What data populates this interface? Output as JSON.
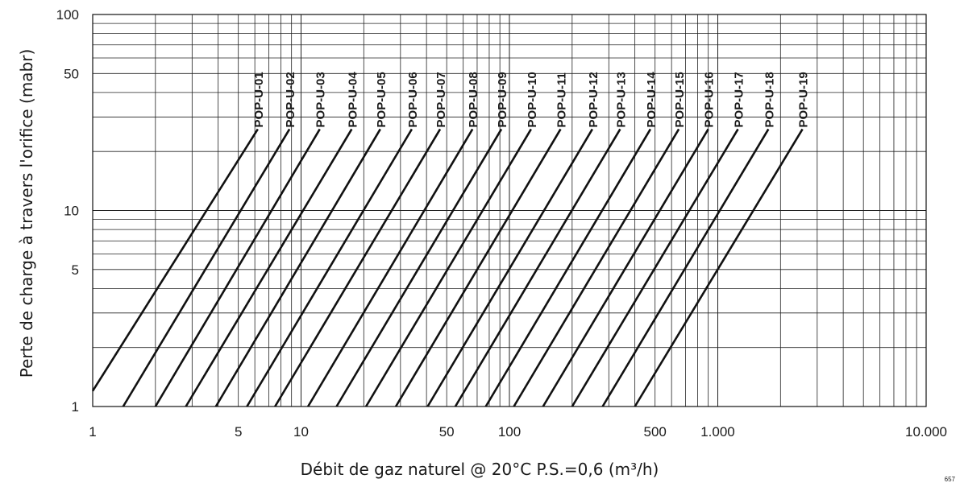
{
  "chart_data": {
    "type": "line",
    "xlabel": "Débit de gaz naturel @ 20°C  P.S.=0,6  (m³/h)",
    "ylabel": "Perte de charge à travers l'orifice (mabr)",
    "x_scale": "log",
    "y_scale": "log",
    "xlim": [
      1,
      10000
    ],
    "ylim": [
      1,
      100
    ],
    "x_ticks": [
      {
        "value": 1,
        "label": "1"
      },
      {
        "value": 5,
        "label": "5"
      },
      {
        "value": 10,
        "label": "10"
      },
      {
        "value": 50,
        "label": "50"
      },
      {
        "value": 100,
        "label": "100"
      },
      {
        "value": 500,
        "label": "500"
      },
      {
        "value": 1000,
        "label": "1.000"
      },
      {
        "value": 10000,
        "label": "10.000"
      }
    ],
    "y_ticks": [
      {
        "value": 1,
        "label": "1"
      },
      {
        "value": 5,
        "label": "5"
      },
      {
        "value": 10,
        "label": "10"
      },
      {
        "value": 50,
        "label": "50"
      },
      {
        "value": 100,
        "label": "100"
      }
    ],
    "grid": true,
    "series": [
      {
        "name": "POP-U-01",
        "points": [
          [
            1.0,
            1.2
          ],
          [
            6.2,
            26
          ]
        ]
      },
      {
        "name": "POP-U-02",
        "points": [
          [
            1.4,
            1.0
          ],
          [
            8.8,
            26
          ]
        ]
      },
      {
        "name": "POP-U-03",
        "points": [
          [
            2.0,
            1.0
          ],
          [
            12.3,
            26
          ]
        ]
      },
      {
        "name": "POP-U-04",
        "points": [
          [
            2.8,
            1.0
          ],
          [
            17.5,
            26
          ]
        ]
      },
      {
        "name": "POP-U-05",
        "points": [
          [
            3.9,
            1.0
          ],
          [
            24.0,
            26
          ]
        ]
      },
      {
        "name": "POP-U-06",
        "points": [
          [
            5.5,
            1.0
          ],
          [
            34.0,
            26
          ]
        ]
      },
      {
        "name": "POP-U-07",
        "points": [
          [
            7.5,
            1.0
          ],
          [
            46.5,
            26
          ]
        ]
      },
      {
        "name": "POP-U-08",
        "points": [
          [
            10.8,
            1.0
          ],
          [
            66.5,
            26
          ]
        ]
      },
      {
        "name": "POP-U-09",
        "points": [
          [
            14.8,
            1.0
          ],
          [
            91.5,
            26
          ]
        ]
      },
      {
        "name": "POP-U-10",
        "points": [
          [
            20.5,
            1.0
          ],
          [
            127,
            26
          ]
        ]
      },
      {
        "name": "POP-U-11",
        "points": [
          [
            28.5,
            1.0
          ],
          [
            176,
            26
          ]
        ]
      },
      {
        "name": "POP-U-12",
        "points": [
          [
            40.5,
            1.0
          ],
          [
            250,
            26
          ]
        ]
      },
      {
        "name": "POP-U-13",
        "points": [
          [
            55.0,
            1.0
          ],
          [
            340,
            26
          ]
        ]
      },
      {
        "name": "POP-U-14",
        "points": [
          [
            77.0,
            1.0
          ],
          [
            475,
            26
          ]
        ]
      },
      {
        "name": "POP-U-15",
        "points": [
          [
            105,
            1.0
          ],
          [
            650,
            26
          ]
        ]
      },
      {
        "name": "POP-U-16",
        "points": [
          [
            145,
            1.0
          ],
          [
            900,
            26
          ]
        ]
      },
      {
        "name": "POP-U-17",
        "points": [
          [
            200,
            1.0
          ],
          [
            1250,
            26
          ]
        ]
      },
      {
        "name": "POP-U-18",
        "points": [
          [
            280,
            1.0
          ],
          [
            1750,
            26
          ]
        ]
      },
      {
        "name": "POP-U-19",
        "points": [
          [
            400,
            1.0
          ],
          [
            2550,
            26
          ]
        ]
      }
    ]
  },
  "footnote": "657"
}
